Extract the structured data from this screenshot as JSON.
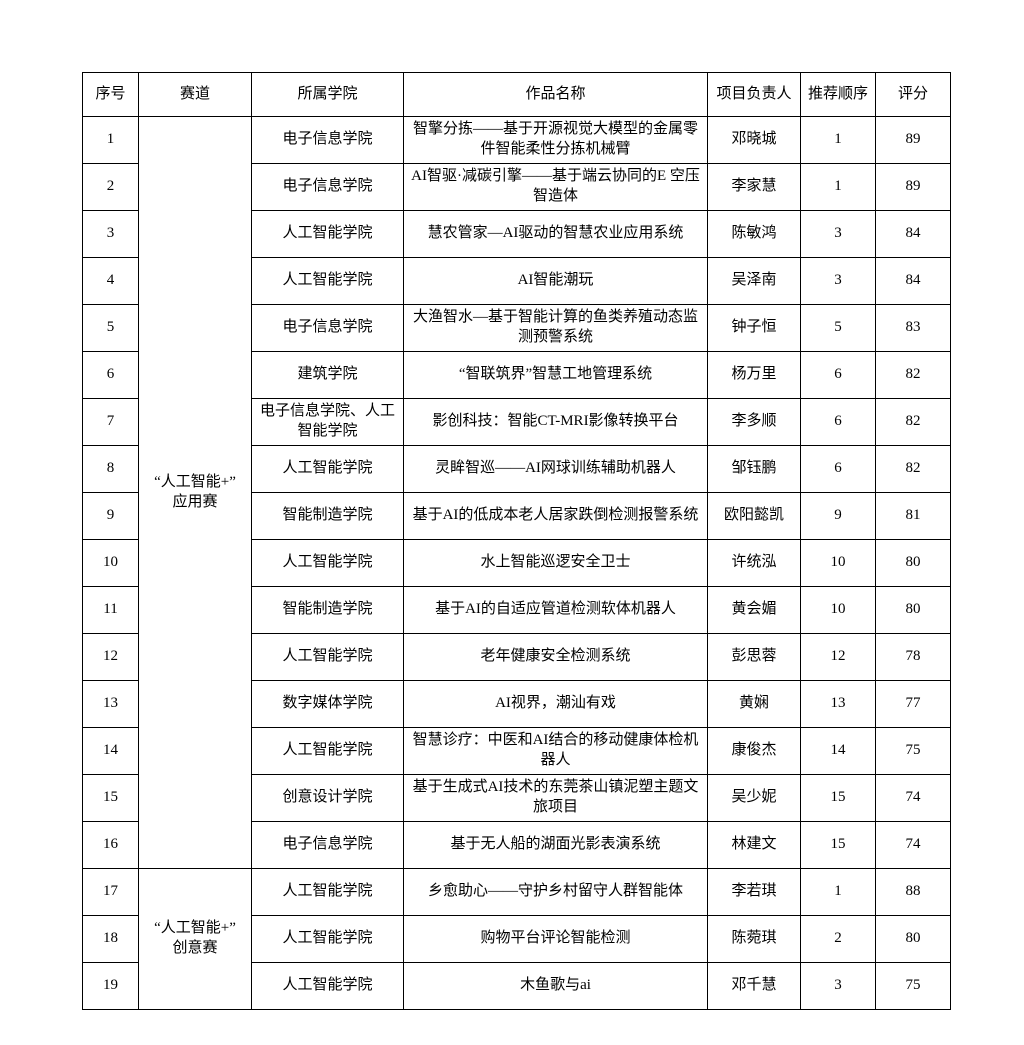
{
  "table": {
    "headers": [
      "序号",
      "赛道",
      "所属学院",
      "作品名称",
      "项目负责人",
      "推荐顺序",
      "评分"
    ],
    "tracks": [
      {
        "label": "“人工智能+”\n应用赛",
        "rowspan": 16
      },
      {
        "label": "“人工智能+”\n创意赛",
        "rowspan": 3
      }
    ],
    "rows": [
      {
        "no": "1",
        "college": "电子信息学院",
        "work": "智擎分拣——基于开源视觉大模型的金属零件智能柔性分拣机械臂",
        "leader": "邓晓城",
        "order": "1",
        "score": "89"
      },
      {
        "no": "2",
        "college": "电子信息学院",
        "work": "AI智驱·减碳引擎——基于端云协同的E 空压智造体",
        "leader": "李家慧",
        "order": "1",
        "score": "89"
      },
      {
        "no": "3",
        "college": "人工智能学院",
        "work": "慧农管家—AI驱动的智慧农业应用系统",
        "leader": "陈敏鸿",
        "order": "3",
        "score": "84"
      },
      {
        "no": "4",
        "college": "人工智能学院",
        "work": "AI智能潮玩",
        "leader": "吴泽南",
        "order": "3",
        "score": "84"
      },
      {
        "no": "5",
        "college": "电子信息学院",
        "work": "大渔智水—基于智能计算的鱼类养殖动态监测预警系统",
        "leader": "钟子恒",
        "order": "5",
        "score": "83"
      },
      {
        "no": "6",
        "college": "建筑学院",
        "work": "“智联筑界”智慧工地管理系统",
        "leader": "杨万里",
        "order": "6",
        "score": "82"
      },
      {
        "no": "7",
        "college": "电子信息学院、人工智能学院",
        "work": "影创科技：智能CT-MRI影像转换平台",
        "leader": "李多顺",
        "order": "6",
        "score": "82"
      },
      {
        "no": "8",
        "college": "人工智能学院",
        "work": "灵眸智巡——AI网球训练辅助机器人",
        "leader": "邹钰鹏",
        "order": "6",
        "score": "82"
      },
      {
        "no": "9",
        "college": "智能制造学院",
        "work": "基于AI的低成本老人居家跌倒检测报警系统",
        "leader": "欧阳懿凯",
        "order": "9",
        "score": "81"
      },
      {
        "no": "10",
        "college": "人工智能学院",
        "work": "水上智能巡逻安全卫士",
        "leader": "许统泓",
        "order": "10",
        "score": "80"
      },
      {
        "no": "11",
        "college": "智能制造学院",
        "work": "基于AI的自适应管道检测软体机器人",
        "leader": "黄会媚",
        "order": "10",
        "score": "80"
      },
      {
        "no": "12",
        "college": "人工智能学院",
        "work": "老年健康安全检测系统",
        "leader": "彭思蓉",
        "order": "12",
        "score": "78"
      },
      {
        "no": "13",
        "college": "数字媒体学院",
        "work": "AI视界，潮汕有戏",
        "leader": "黄娴",
        "order": "13",
        "score": "77"
      },
      {
        "no": "14",
        "college": "人工智能学院",
        "work": "智慧诊疗：中医和AI结合的移动健康体检机器人",
        "leader": "康俊杰",
        "order": "14",
        "score": "75"
      },
      {
        "no": "15",
        "college": "创意设计学院",
        "work": "基于生成式AI技术的东莞茶山镇泥塑主题文旅项目",
        "leader": "吴少妮",
        "order": "15",
        "score": "74"
      },
      {
        "no": "16",
        "college": "电子信息学院",
        "work": "基于无人船的湖面光影表演系统",
        "leader": "林建文",
        "order": "15",
        "score": "74"
      },
      {
        "no": "17",
        "college": "人工智能学院",
        "work": "乡愈助心——守护乡村留守人群智能体",
        "leader": "李若琪",
        "order": "1",
        "score": "88"
      },
      {
        "no": "18",
        "college": "人工智能学院",
        "work": "购物平台评论智能检测",
        "leader": "陈菀琪",
        "order": "2",
        "score": "80"
      },
      {
        "no": "19",
        "college": "人工智能学院",
        "work": "木鱼歌与ai",
        "leader": "邓千慧",
        "order": "3",
        "score": "75"
      }
    ]
  }
}
